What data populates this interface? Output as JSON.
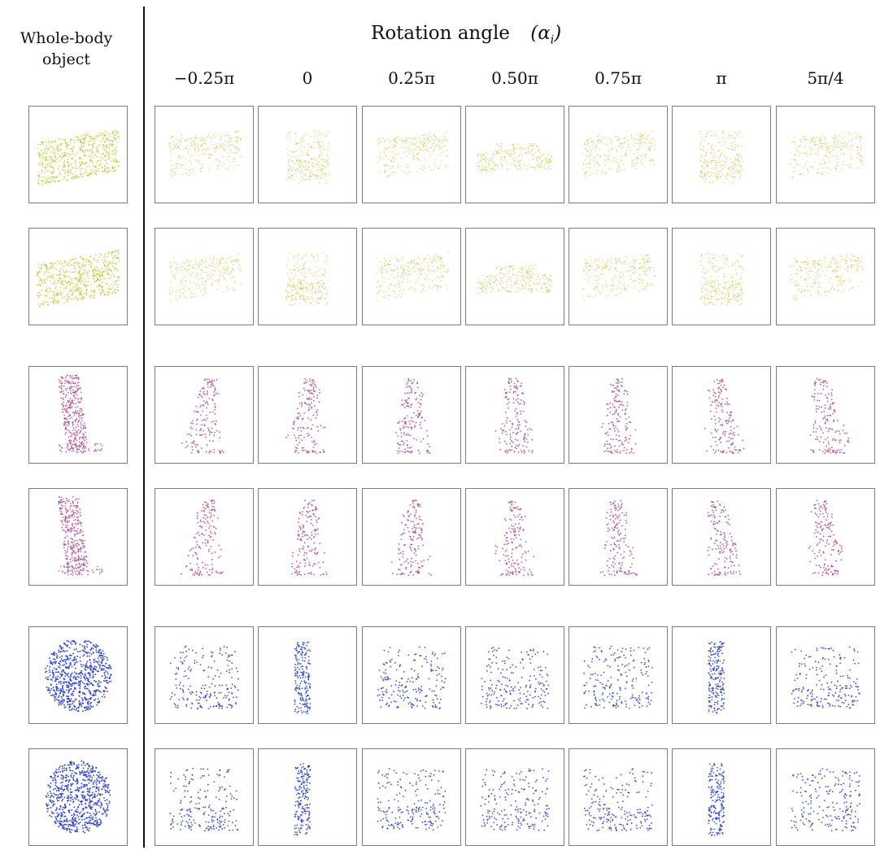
{
  "left_header": {
    "line1": "Whole-body",
    "line2": "object"
  },
  "main_header": {
    "title": "Rotation angle",
    "symbol": "α",
    "subscript": "i"
  },
  "angle_labels": [
    "−0.25π",
    "0",
    "0.25π",
    "0.50π",
    "0.75π",
    "π",
    "5π/4"
  ],
  "colors": {
    "car": "#bdbd2e",
    "pedestrian": "#b0498f",
    "cyclist": "#2a3fc9",
    "border": "#7d7d7d",
    "divider": "#111111"
  },
  "rows": [
    {
      "category": "car",
      "icon": "car-point-cloud-icon"
    },
    {
      "category": "car",
      "icon": "car-point-cloud-icon"
    },
    {
      "category": "pedestrian",
      "icon": "pedestrian-point-cloud-icon"
    },
    {
      "category": "pedestrian",
      "icon": "pedestrian-point-cloud-icon"
    },
    {
      "category": "cyclist",
      "icon": "cyclist-point-cloud-icon"
    },
    {
      "category": "cyclist",
      "icon": "cyclist-point-cloud-icon"
    }
  ]
}
